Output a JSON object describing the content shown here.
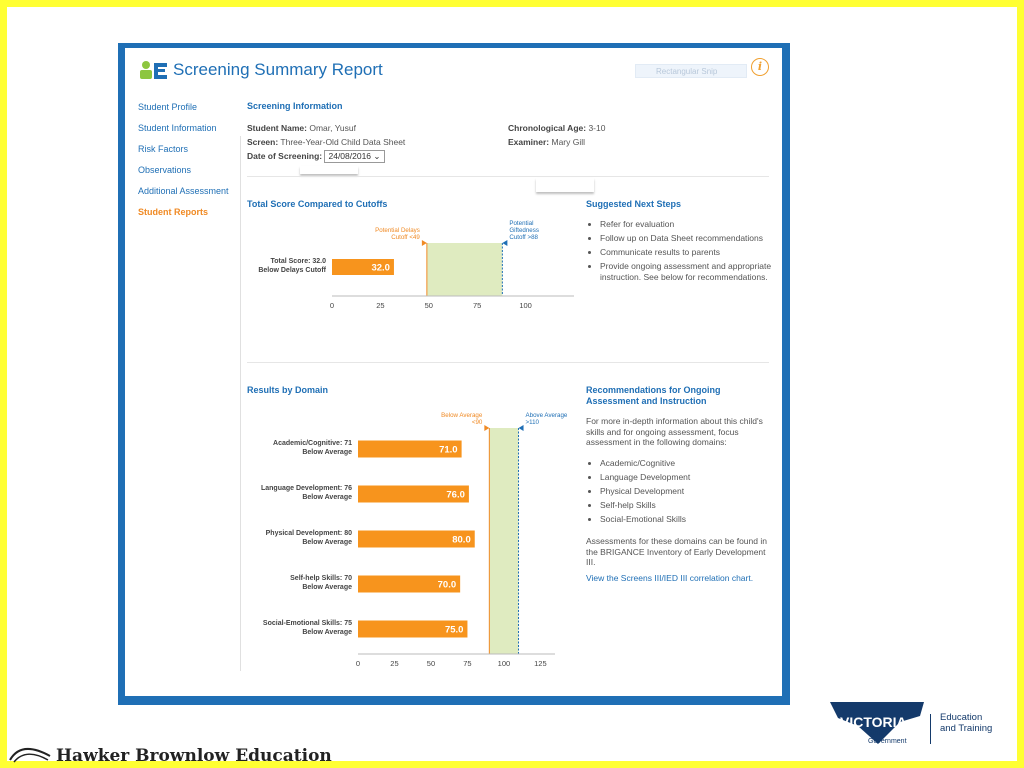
{
  "header": {
    "title": "Screening Summary Report",
    "search_placeholder": "Rectangular Snip",
    "info_icon": "info-icon"
  },
  "nav": {
    "items": [
      {
        "label": "Student Profile",
        "active": false
      },
      {
        "label": "Student Information",
        "active": false
      },
      {
        "label": "Risk Factors",
        "active": false
      },
      {
        "label": "Observations",
        "active": false
      },
      {
        "label": "Additional Assessment",
        "active": false
      },
      {
        "label": "Student Reports",
        "active": true
      }
    ]
  },
  "screening_info": {
    "heading": "Screening Information",
    "student_name_label": "Student Name:",
    "student_name": "Omar, Yusuf",
    "screen_label": "Screen:",
    "screen": "Three-Year-Old Child Data Sheet",
    "date_label": "Date of Screening:",
    "date": "24/08/2016",
    "age_label": "Chronological Age:",
    "age": "3-10",
    "examiner_label": "Examiner:",
    "examiner": "Mary Gill"
  },
  "total_score": {
    "heading": "Total Score Compared to Cutoffs"
  },
  "next_steps": {
    "heading": "Suggested Next Steps",
    "items": [
      "Refer for evaluation",
      "Follow up on Data Sheet recommendations",
      "Communicate results to parents",
      "Provide ongoing assessment and appropriate instruction. See below for recommendations."
    ]
  },
  "results_by_domain": {
    "heading": "Results by Domain"
  },
  "recommendations": {
    "heading_line1": "Recommendations for Ongoing",
    "heading_line2": "Assessment and Instruction",
    "intro": "For more in-depth information about this child's skills and for ongoing assessment, focus assessment in the following domains:",
    "domains": [
      "Academic/Cognitive",
      "Language Development",
      "Physical Development",
      "Self-help Skills",
      "Social-Emotional Skills"
    ],
    "note": "Assessments for these domains can be found in the BRIGANCE Inventory of Early Development III.",
    "link": "View the Screens III/IED III correlation chart."
  },
  "chart_data": [
    {
      "type": "bar",
      "orientation": "horizontal",
      "categories": [
        "Total Score: 32.0 Below Delays Cutoff"
      ],
      "category_lines": [
        [
          "Total Score: 32.0",
          "Below Delays Cutoff"
        ]
      ],
      "values": [
        32.0
      ],
      "value_labels": [
        "32.0"
      ],
      "xlim": [
        0,
        125
      ],
      "xticks": [
        0,
        25,
        50,
        75,
        100
      ],
      "band": {
        "from": 49,
        "to": 88
      },
      "cutoffs": [
        {
          "value": 49,
          "lines": [
            "Potential Delays",
            "Cutoff <49"
          ],
          "color": "#f08a24"
        },
        {
          "value": 88,
          "lines": [
            "Potential",
            "Giftedness",
            "Cutoff >88"
          ],
          "color": "#1f6fb5"
        }
      ],
      "colors": {
        "bar": "#f7941d",
        "band": "#dfebc0",
        "bar_text": "#ffffff"
      }
    },
    {
      "type": "bar",
      "orientation": "horizontal",
      "categories": [
        "Academic/Cognitive: 71 Below Average",
        "Language Development: 76 Below Average",
        "Physical Development: 80 Below Average",
        "Self-help Skills: 70 Below Average",
        "Social-Emotional Skills: 75 Below Average"
      ],
      "category_lines": [
        [
          "Academic/Cognitive: 71",
          "Below Average"
        ],
        [
          "Language Development: 76",
          "Below Average"
        ],
        [
          "Physical Development: 80",
          "Below Average"
        ],
        [
          "Self-help Skills: 70",
          "Below Average"
        ],
        [
          "Social-Emotional Skills: 75",
          "Below Average"
        ]
      ],
      "values": [
        71.0,
        76.0,
        80.0,
        70.0,
        75.0
      ],
      "value_labels": [
        "71.0",
        "76.0",
        "80.0",
        "70.0",
        "75.0"
      ],
      "xlim": [
        0,
        135
      ],
      "xticks": [
        0,
        25,
        50,
        75,
        100,
        125
      ],
      "band": {
        "from": 90,
        "to": 110
      },
      "cutoffs": [
        {
          "value": 90,
          "lines": [
            "Below Average",
            "<90"
          ],
          "color": "#f08a24"
        },
        {
          "value": 110,
          "lines": [
            "Above Average",
            ">110"
          ],
          "color": "#1f6fb5"
        }
      ],
      "colors": {
        "bar": "#f7941d",
        "band": "#dfebc0",
        "bar_text": "#ffffff"
      }
    }
  ],
  "footer": {
    "publisher": "Hawker Brownlow Education",
    "victoria_word": "VICTORIA",
    "victoria_sub_line1": "State",
    "victoria_sub_line2": "Government",
    "edu_line1": "Education",
    "edu_line2": "and Training"
  }
}
